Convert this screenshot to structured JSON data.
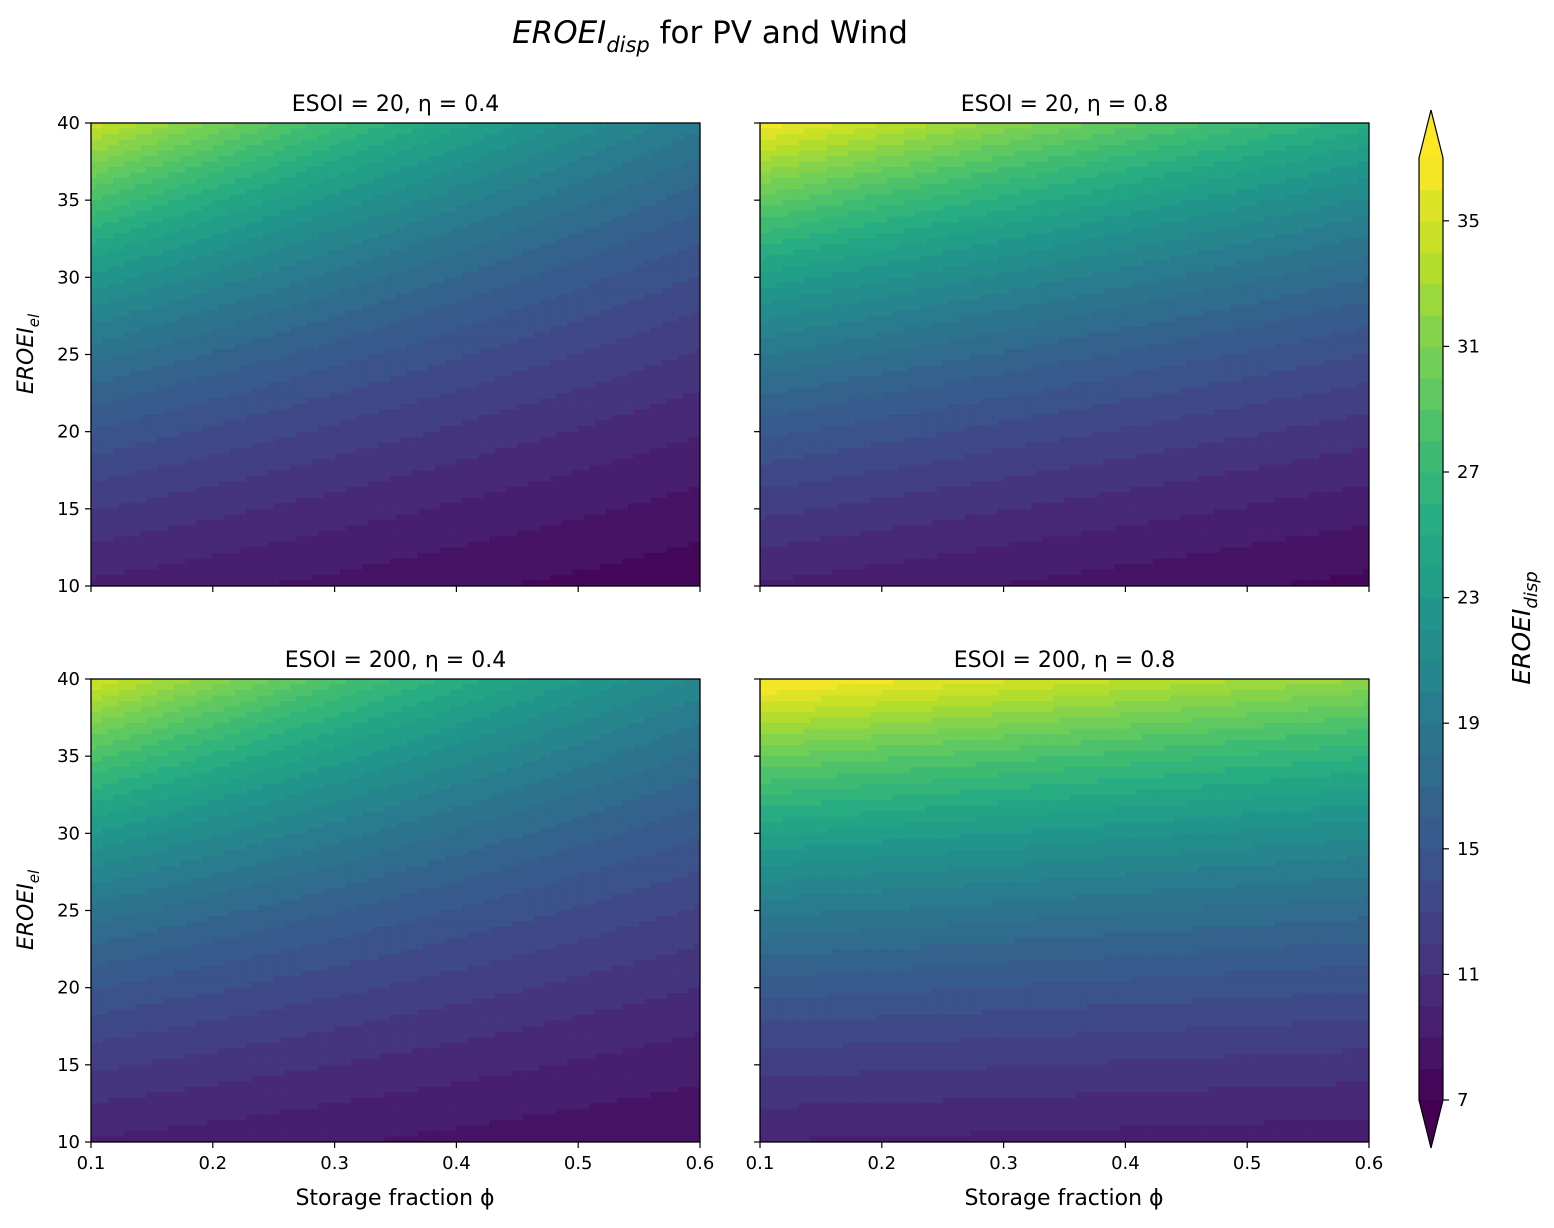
{
  "title": {
    "main": "EROEI",
    "sub": "disp",
    "rest": " for PV and Wind"
  },
  "x_label": "Storage fraction ϕ",
  "y_label": {
    "main": "EROEI",
    "sub": "el"
  },
  "colorbar": {
    "label": {
      "main": "EROEI",
      "sub": "disp"
    },
    "range": [
      7,
      37
    ],
    "ticks": [
      "7",
      "11",
      "15",
      "19",
      "23",
      "27",
      "31",
      "35"
    ],
    "levels": 30,
    "extend": "both",
    "colormap": "viridis"
  },
  "chart_data": [
    {
      "type": "heatmap",
      "title": "ESOI = 20, η = 0.4",
      "params": {
        "ESOI": 20,
        "eta": 0.4
      },
      "xlim": [
        0.1,
        0.6
      ],
      "ylim": [
        10,
        40
      ],
      "x_ticks": [
        "0.1",
        "0.2",
        "0.3",
        "0.4",
        "0.5",
        "0.6"
      ],
      "y_ticks": [
        "10",
        "15",
        "20",
        "25",
        "30",
        "35",
        "40"
      ],
      "x_ticklabels_shown": false,
      "y_ticklabels_shown": true,
      "corner_values": {
        "x0.1_y40": 34.7,
        "x0.6_y40": 19.3,
        "x0.1_y10": 9.8,
        "x0.6_y10": 7.3
      }
    },
    {
      "type": "heatmap",
      "title": "ESOI = 20, η = 0.8",
      "params": {
        "ESOI": 20,
        "eta": 0.8
      },
      "xlim": [
        0.1,
        0.6
      ],
      "ylim": [
        10,
        40
      ],
      "x_ticks": [
        "0.1",
        "0.2",
        "0.3",
        "0.4",
        "0.5",
        "0.6"
      ],
      "y_ticks": [
        "10",
        "15",
        "20",
        "25",
        "30",
        "35",
        "40"
      ],
      "x_ticklabels_shown": false,
      "y_ticklabels_shown": false,
      "corner_values": {
        "x0.1_y40": 36.8,
        "x0.6_y40": 25.4,
        "x0.1_y10": 9.9,
        "x0.6_y10": 7.7
      }
    },
    {
      "type": "heatmap",
      "title": "ESOI = 200, η = 0.4",
      "params": {
        "ESOI": 200,
        "eta": 0.4
      },
      "xlim": [
        0.1,
        0.6
      ],
      "ylim": [
        10,
        40
      ],
      "x_ticks": [
        "0.1",
        "0.2",
        "0.3",
        "0.4",
        "0.5",
        "0.6"
      ],
      "y_ticks": [
        "10",
        "15",
        "20",
        "25",
        "30",
        "35",
        "40"
      ],
      "x_ticklabels_shown": true,
      "y_ticklabels_shown": true,
      "corner_values": {
        "x0.1_y40": 35.1,
        "x0.6_y40": 20.8,
        "x0.1_y10": 9.9,
        "x0.6_y10": 8.0
      }
    },
    {
      "type": "heatmap",
      "title": "ESOI = 200, η = 0.8",
      "params": {
        "ESOI": 200,
        "eta": 0.8
      },
      "xlim": [
        0.1,
        0.6
      ],
      "ylim": [
        10,
        40
      ],
      "x_ticks": [
        "0.1",
        "0.2",
        "0.3",
        "0.4",
        "0.5",
        "0.6"
      ],
      "y_ticks": [
        "10",
        "15",
        "20",
        "25",
        "30",
        "35",
        "40"
      ],
      "x_ticklabels_shown": true,
      "y_ticklabels_shown": false,
      "corner_values": {
        "x0.1_y40": 37.6,
        "x0.6_y40": 32.0,
        "x0.1_y10": 9.97,
        "x0.6_y10": 9.4
      }
    }
  ]
}
